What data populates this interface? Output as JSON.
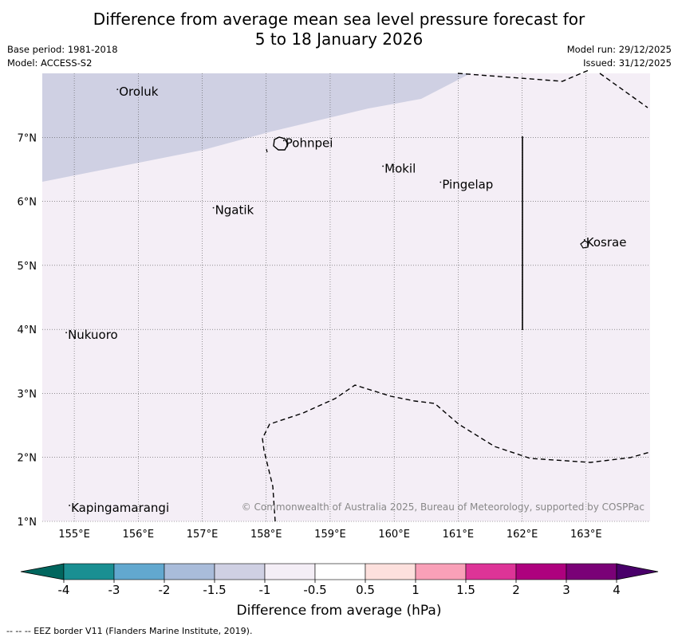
{
  "title": {
    "line1": "Difference from average mean sea level pressure forecast for",
    "line2": "5 to 18 January 2026"
  },
  "meta": {
    "base_period": "Base period: 1981-2018",
    "model": "Model: ACCESS-S2",
    "model_run": "Model run: 29/12/2025",
    "issued": "Issued: 31/12/2025"
  },
  "map": {
    "lon_range": [
      154.5,
      164
    ],
    "lat_range": [
      1,
      8
    ],
    "lon_ticks": [
      "155°E",
      "156°E",
      "157°E",
      "158°E",
      "159°E",
      "160°E",
      "161°E",
      "162°E",
      "163°E"
    ],
    "lat_ticks": [
      "1°N",
      "2°N",
      "3°N",
      "4°N",
      "5°N",
      "6°N",
      "7°N"
    ],
    "lon_tick_values": [
      155,
      156,
      157,
      158,
      159,
      160,
      161,
      162,
      163
    ],
    "lat_tick_values": [
      1,
      2,
      3,
      4,
      5,
      6,
      7
    ],
    "places": [
      {
        "name": "Oroluk",
        "lon": 155.7,
        "lat": 7.65
      },
      {
        "name": "Pohnpei",
        "lon": 158.3,
        "lat": 6.85
      },
      {
        "name": "Mokil",
        "lon": 159.85,
        "lat": 6.45
      },
      {
        "name": "Pingelap",
        "lon": 160.75,
        "lat": 6.2
      },
      {
        "name": "Ngatik",
        "lon": 157.2,
        "lat": 5.8
      },
      {
        "name": "Kosrae",
        "lon": 163.0,
        "lat": 5.3
      },
      {
        "name": "Nukuoro",
        "lon": 154.9,
        "lat": 3.85
      },
      {
        "name": "Kapingamarangi",
        "lon": 154.95,
        "lat": 1.15
      }
    ],
    "background_color": "#f4eef6",
    "negative_region_color": "#cfd0e3",
    "copyright": "© Commonwealth of Australia 2025, Bureau of Meteorology, supported by COSPPac"
  },
  "colorbar": {
    "labels": [
      "-4",
      "-3",
      "-2",
      "-1.5",
      "-1",
      "-0.5",
      "0.5",
      "1",
      "1.5",
      "2",
      "3",
      "4"
    ],
    "colors": [
      "#1a8f92",
      "#62a8cf",
      "#a9bcda",
      "#cfd0e3",
      "#f4eef6",
      "#ffffff",
      "#fde0dd",
      "#f9a0b8",
      "#dd3497",
      "#ae017e",
      "#7a0177"
    ],
    "under_color": "#01665e",
    "over_color": "#49006a",
    "label": "Difference from average (hPa)"
  },
  "footer": "--  --  -- EEZ border V11 (Flanders Marine Institute, 2019)."
}
